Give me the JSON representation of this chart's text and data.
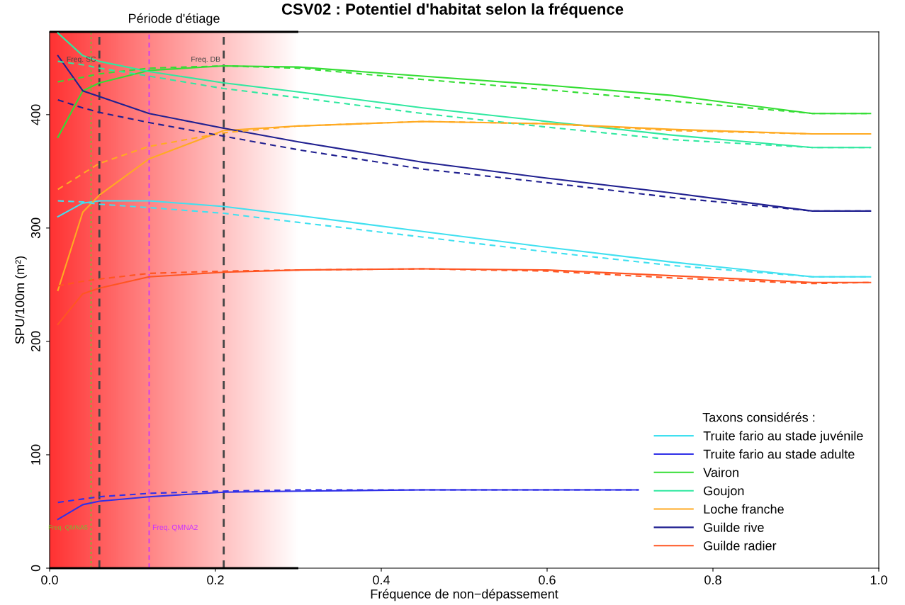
{
  "chart_data": {
    "type": "line",
    "title": "CSV02 : Potentiel d'habitat selon la fréquence",
    "xlabel": "Fréquence de non−dépassement",
    "ylabel": "SPU/100m (m²)",
    "legend_title": "Taxons considérés :",
    "legend": "bottom right",
    "grid": false,
    "line_style": "solid",
    "xlim": [
      0,
      1
    ],
    "ylim": [
      0,
      473
    ],
    "xticks": [
      {
        "value": 0,
        "label": "0.0"
      },
      0.2,
      0.4,
      0.6,
      0.8,
      {
        "value": 1,
        "label": "1.0"
      }
    ],
    "yticks": [
      0,
      100,
      200,
      300,
      400
    ],
    "x": [
      0.01,
      0.04,
      0.06,
      0.12,
      0.21,
      0.3,
      0.45,
      0.6,
      0.75,
      0.92,
      0.99
    ],
    "series": [
      {
        "name": "Truite fario au stade juvénile",
        "color": "#40e0f0",
        "values": [
          310,
          322,
          324,
          324,
          319,
          311,
          297,
          283,
          270,
          257,
          257
        ]
      },
      {
        "name": "Truite fario au stade adulte",
        "color": "#3030e8",
        "x": [
          0.01,
          0.04,
          0.06,
          0.12,
          0.21,
          0.3,
          0.45,
          0.71
        ],
        "values": [
          43,
          56,
          59,
          63,
          67,
          68,
          69,
          69
        ]
      },
      {
        "name": "Vairon",
        "color": "#33dd33",
        "values": [
          380,
          421,
          428,
          439,
          443,
          442,
          434,
          426,
          417,
          401,
          401
        ]
      },
      {
        "name": "Goujon",
        "color": "#30e8a0",
        "values": [
          472,
          452,
          447,
          438,
          428,
          420,
          406,
          394,
          382,
          371,
          371
        ]
      },
      {
        "name": "Loche franche",
        "color": "#ffaa22",
        "values": [
          245,
          314,
          329,
          361,
          386,
          390,
          394,
          392,
          387,
          383,
          383
        ]
      },
      {
        "name": "Guilde rive",
        "color": "#202090",
        "values": [
          452,
          421,
          416,
          401,
          388,
          376,
          358,
          344,
          331,
          315,
          315
        ]
      },
      {
        "name": "Guilde radier",
        "color": "#ff5522",
        "values": [
          215,
          242,
          247,
          257,
          261,
          263,
          264,
          263,
          258,
          252,
          252
        ]
      },
      {
        "color": "#40e0f0",
        "line_style": "dashed",
        "values": [
          324,
          323,
          321,
          318,
          313,
          305,
          292,
          279,
          267,
          257,
          257
        ]
      },
      {
        "color": "#3030e8",
        "line_style": "dashed",
        "x": [
          0.01,
          0.04,
          0.06,
          0.12,
          0.21,
          0.3,
          0.45,
          0.71
        ],
        "values": [
          58,
          61,
          63,
          66,
          68,
          69,
          69,
          69
        ]
      },
      {
        "color": "#33dd33",
        "line_style": "dashed",
        "values": [
          429,
          433,
          436,
          441,
          443,
          441,
          431,
          422,
          412,
          401,
          401
        ]
      },
      {
        "color": "#30e8a0",
        "line_style": "dashed",
        "values": [
          447,
          444,
          441,
          434,
          423,
          415,
          401,
          389,
          378,
          371,
          371
        ]
      },
      {
        "color": "#ffaa22",
        "line_style": "dashed",
        "values": [
          334,
          348,
          357,
          372,
          384,
          390,
          394,
          392,
          386,
          383,
          383
        ]
      },
      {
        "color": "#202090",
        "line_style": "dashed",
        "values": [
          413,
          406,
          402,
          393,
          381,
          369,
          352,
          340,
          327,
          315,
          315
        ]
      },
      {
        "color": "#ff5522",
        "line_style": "dashed",
        "values": [
          249,
          253,
          255,
          260,
          262,
          263,
          264,
          262,
          256,
          251,
          252
        ]
      }
    ],
    "bands": [
      {
        "axis": "x",
        "from": 0,
        "to": 0.3,
        "label": "Période d'étiage",
        "color": "#ff3333"
      }
    ],
    "ref_lines": [
      {
        "axis": "x",
        "value": 0.05,
        "label": "Freq. QMNA5",
        "color": "#77bb33",
        "line_style": "dotted"
      },
      {
        "axis": "x",
        "value": 0.06,
        "label": "Freq. SC",
        "color": "#444444",
        "line_style": "dashed"
      },
      {
        "axis": "x",
        "value": 0.12,
        "label": "Freq. QMNA2",
        "color": "#cc33ff",
        "line_style": "dashed"
      },
      {
        "axis": "x",
        "value": 0.21,
        "label": "Freq. DB",
        "color": "#444444",
        "line_style": "dashed"
      }
    ]
  }
}
